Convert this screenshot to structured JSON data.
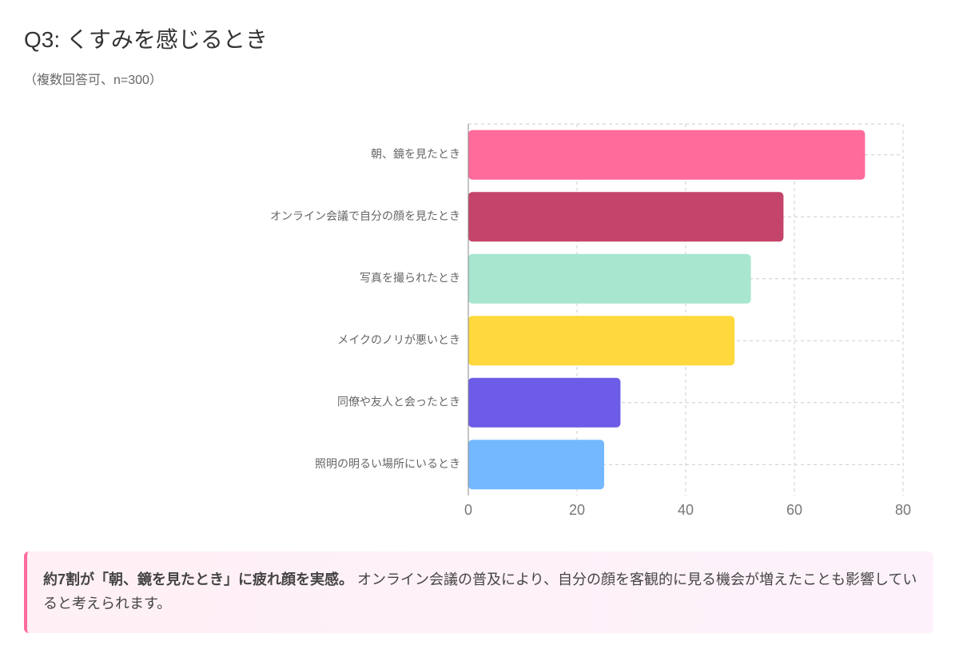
{
  "chart_data": {
    "type": "barh",
    "title": "Q3: くすみを感じるとき",
    "subtitle": "（複数回答可、n=300）",
    "categories": [
      "朝、鏡を見たとき",
      "オンライン会議で自分の顔を見たとき",
      "写真を撮られたとき",
      "メイクのノリが悪いとき",
      "同僚や友人と会ったとき",
      "照明の明るい場所にいるとき"
    ],
    "values": [
      73,
      58,
      52,
      49,
      28,
      25
    ],
    "colors": [
      "#ff6b9a",
      "#c44569",
      "#a8e6cf",
      "#ffd93d",
      "#6c5ce7",
      "#74b9ff"
    ],
    "xlim": [
      0,
      80
    ],
    "xticks": [
      0,
      20,
      40,
      60,
      80
    ],
    "grid": true,
    "annotation": {
      "bold": "約7割が「朝、鏡を見たとき」に疲れ顔を実感。",
      "text": "オンライン会議の普及により、自分の顔を客観的に見る機会が増えたことも影響していると考えられます。"
    }
  }
}
